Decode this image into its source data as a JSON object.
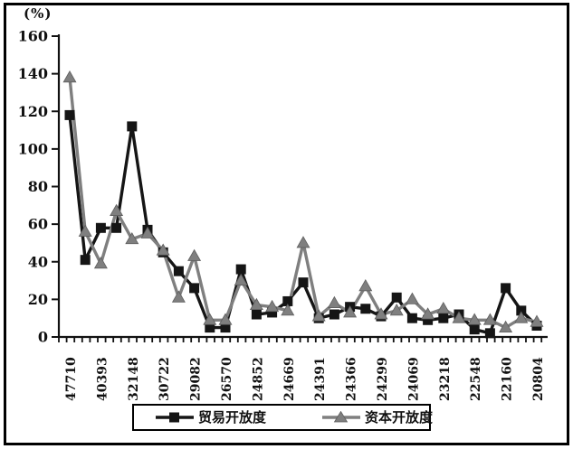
{
  "window": {
    "background_color": "#ffffff",
    "frame_border_color": "#000000"
  },
  "chart_data": {
    "type": "line",
    "title": "",
    "y_unit_label": "(%)",
    "xlabel": "",
    "ylabel": "(%)",
    "ylim": [
      0,
      160
    ],
    "yticks": [
      0,
      20,
      40,
      60,
      80,
      100,
      120,
      140,
      160
    ],
    "grid": false,
    "legend_position": "bottom",
    "x_tick_labels": [
      "47710",
      "40393",
      "32148",
      "30722",
      "29082",
      "26570",
      "24852",
      "24669",
      "24391",
      "24366",
      "24299",
      "24069",
      "23218",
      "22548",
      "22160",
      "20804"
    ],
    "x_label_every_n_points": 2,
    "series": [
      {
        "name": "贸易开放度",
        "marker": "square",
        "color": "#151515",
        "values": [
          118,
          41,
          58,
          58,
          112,
          57,
          45,
          35,
          26,
          5,
          5,
          36,
          12,
          13,
          19,
          29,
          10,
          12,
          16,
          15,
          11,
          21,
          10,
          9,
          10,
          12,
          4,
          2,
          26,
          14,
          6
        ]
      },
      {
        "name": "资本开放度",
        "marker": "triangle",
        "color": "#7f7f7f",
        "values": [
          138,
          56,
          39,
          67,
          52,
          55,
          46,
          21,
          43,
          9,
          9,
          30,
          17,
          16,
          14,
          50,
          11,
          18,
          13,
          27,
          12,
          14,
          20,
          12,
          15,
          10,
          9,
          9,
          5,
          10,
          8
        ]
      }
    ]
  }
}
